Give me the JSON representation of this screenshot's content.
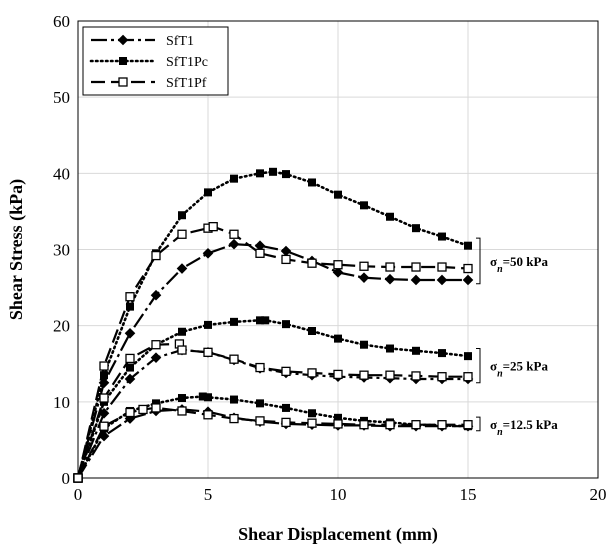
{
  "chart_data": {
    "type": "line",
    "xlabel": "Shear Displacement (mm)",
    "ylabel": "Shear Stress (kPa)",
    "xlim": [
      0,
      20
    ],
    "ylim": [
      0,
      60
    ],
    "xticks": [
      0,
      5,
      10,
      15,
      20
    ],
    "yticks": [
      0,
      10,
      20,
      30,
      40,
      50,
      60
    ],
    "grid": true,
    "legend_position": "top-left",
    "series": [
      {
        "name": "SfT1",
        "style": "solid",
        "marker": "diamond-filled",
        "curves": [
          {
            "x": [
              0,
              1,
              2,
              3,
              4,
              5,
              6,
              7,
              8,
              9,
              10,
              11,
              12,
              13,
              14,
              15
            ],
            "y": [
              0,
              5.5,
              7.8,
              8.8,
              9.0,
              8.7,
              7.9,
              7.4,
              7.1,
              7.0,
              6.9,
              6.9,
              6.8,
              6.8,
              6.8,
              6.8
            ]
          },
          {
            "x": [
              0,
              1,
              2,
              3,
              4,
              5,
              6,
              7,
              8,
              9,
              10,
              11,
              12,
              13,
              14,
              15
            ],
            "y": [
              0,
              8.5,
              13.0,
              15.8,
              16.8,
              16.5,
              15.5,
              14.4,
              13.8,
              13.5,
              13.3,
              13.2,
              13.1,
              13.0,
              13.0,
              13.0
            ]
          },
          {
            "x": [
              0,
              1,
              2,
              3,
              4,
              5,
              6,
              7,
              8,
              9,
              10,
              11,
              12,
              13,
              14,
              15
            ],
            "y": [
              0,
              12.5,
              19.0,
              24.0,
              27.5,
              29.5,
              30.7,
              30.5,
              29.8,
              28.5,
              27.0,
              26.3,
              26.1,
              26.0,
              26.0,
              26.0
            ]
          }
        ]
      },
      {
        "name": "SfT1Pc",
        "style": "dotted",
        "marker": "square-filled",
        "curves": [
          {
            "x": [
              0,
              1,
              2,
              3,
              4,
              4.8,
              5,
              6,
              7,
              8,
              9,
              10,
              11,
              12,
              13,
              14,
              15
            ],
            "y": [
              0,
              6.5,
              8.8,
              9.8,
              10.5,
              10.7,
              10.6,
              10.3,
              9.8,
              9.2,
              8.5,
              7.9,
              7.5,
              7.3,
              7.0,
              6.9,
              6.8
            ]
          },
          {
            "x": [
              0,
              1,
              2,
              3,
              4,
              5,
              6,
              7,
              7.2,
              8,
              9,
              10,
              11,
              12,
              13,
              14,
              15
            ],
            "y": [
              0,
              10.0,
              14.5,
              17.5,
              19.2,
              20.1,
              20.5,
              20.7,
              20.7,
              20.2,
              19.3,
              18.3,
              17.5,
              17.0,
              16.7,
              16.4,
              16.0
            ]
          },
          {
            "x": [
              0,
              1,
              2,
              3,
              4,
              5,
              6,
              7,
              7.5,
              8,
              9,
              10,
              11,
              12,
              13,
              14,
              15
            ],
            "y": [
              0,
              13.5,
              22.5,
              29.5,
              34.5,
              37.5,
              39.3,
              40.0,
              40.2,
              39.9,
              38.8,
              37.2,
              35.8,
              34.3,
              32.8,
              31.7,
              30.5
            ]
          }
        ]
      },
      {
        "name": "SfT1Pf",
        "style": "dashed",
        "marker": "square-open",
        "curves": [
          {
            "x": [
              0,
              1,
              2,
              2.5,
              3,
              4,
              5,
              6,
              7,
              8,
              9,
              10,
              11,
              12,
              13,
              14,
              15
            ],
            "y": [
              0,
              6.8,
              8.6,
              9.0,
              9.2,
              8.8,
              8.3,
              7.8,
              7.5,
              7.3,
              7.2,
              7.1,
              7.0,
              7.0,
              7.0,
              7.0,
              7.0
            ]
          },
          {
            "x": [
              0,
              1,
              2,
              3,
              3.9,
              4,
              5,
              6,
              7,
              8,
              9,
              10,
              11,
              12,
              13,
              14,
              15
            ],
            "y": [
              0,
              10.5,
              15.7,
              17.5,
              17.6,
              16.8,
              16.5,
              15.6,
              14.5,
              14.0,
              13.8,
              13.6,
              13.5,
              13.5,
              13.4,
              13.3,
              13.3
            ]
          },
          {
            "x": [
              0,
              1,
              2,
              3,
              4,
              5,
              5.2,
              6,
              7,
              8,
              9,
              10,
              11,
              12,
              13,
              14,
              15
            ],
            "y": [
              0,
              14.7,
              23.8,
              29.2,
              32.0,
              32.8,
              33.0,
              32.0,
              29.5,
              28.7,
              28.2,
              28.0,
              27.8,
              27.7,
              27.7,
              27.7,
              27.5
            ]
          }
        ]
      }
    ],
    "annotations": [
      {
        "prefix": "σ",
        "subscript": "n",
        "text": "=50 kPa",
        "y_range": [
          25.5,
          31.5
        ]
      },
      {
        "prefix": "σ",
        "subscript": "n",
        "text": "=25 kPa",
        "y_range": [
          12.5,
          17.0
        ]
      },
      {
        "prefix": "σ",
        "subscript": "n",
        "text": "=12.5 kPa",
        "y_range": [
          6.2,
          8.0
        ]
      }
    ]
  }
}
